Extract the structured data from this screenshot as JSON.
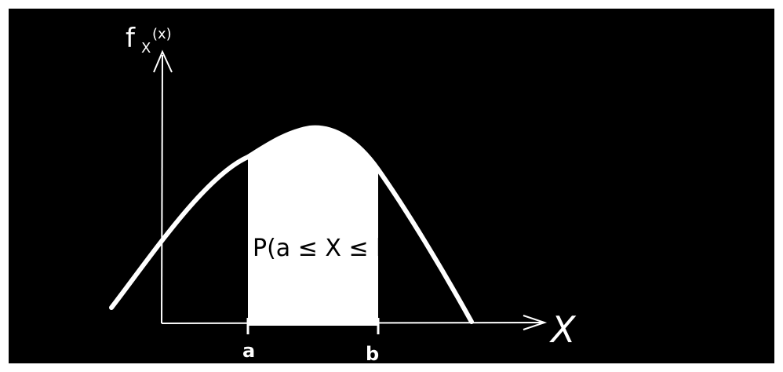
{
  "diagram": {
    "y_axis_label_main": "f",
    "y_axis_label_sub": "X",
    "y_axis_label_arg": "(x)",
    "x_axis_label": "X",
    "tick_a": "a",
    "tick_b": "b",
    "region_label": "P(a ≤ X ≤ b)",
    "colors": {
      "background": "#000000",
      "stroke": "#ffffff",
      "fill": "#ffffff",
      "region_text": "#000000"
    }
  }
}
